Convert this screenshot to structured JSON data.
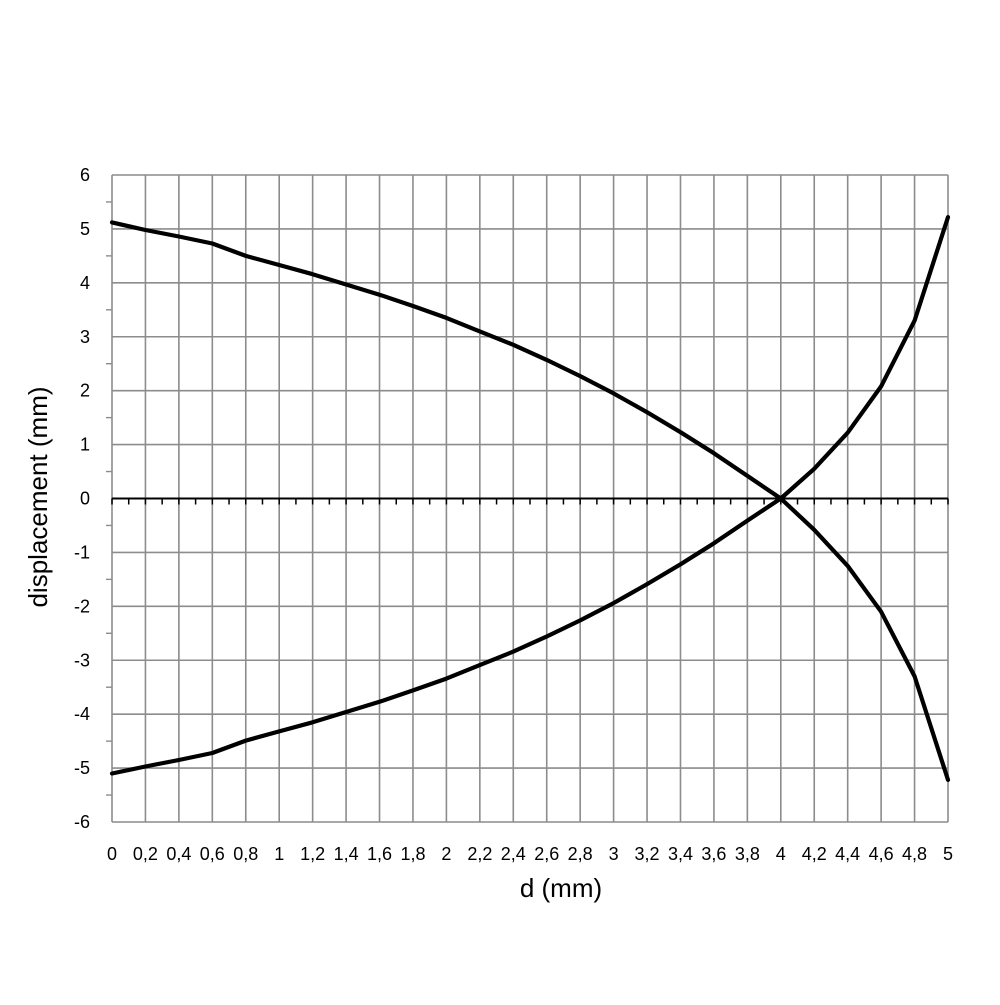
{
  "chart_data": {
    "type": "line",
    "xlabel": "d (mm)",
    "ylabel": "displacement (mm)",
    "xlim": [
      0,
      5
    ],
    "ylim": [
      -6,
      6
    ],
    "grid": true,
    "legend": "none",
    "x_tick_labels": [
      "0",
      "0,2",
      "0,4",
      "0,6",
      "0,8",
      "1",
      "1,2",
      "1,4",
      "1,6",
      "1,8",
      "2",
      "2,2",
      "2,4",
      "2,6",
      "2,8",
      "3",
      "3,2",
      "3,4",
      "3,6",
      "3,8",
      "4",
      "4,2",
      "4,4",
      "4,6",
      "4,8",
      "5"
    ],
    "y_tick_labels": [
      "6",
      "5",
      "4",
      "3",
      "2",
      "1",
      "0",
      "-1",
      "-2",
      "-3",
      "-4",
      "-5",
      "-6"
    ],
    "series": [
      {
        "x": [
          0,
          0.2,
          0.4,
          0.6,
          0.8,
          1.0,
          1.2,
          1.4,
          1.6,
          1.8,
          2.0,
          2.2,
          2.4,
          2.6,
          2.8,
          3.0,
          3.2,
          3.4,
          3.6,
          3.8,
          4.0
        ],
        "y": [
          5.12,
          4.98,
          4.86,
          4.73,
          4.5,
          4.33,
          4.16,
          3.97,
          3.78,
          3.57,
          3.35,
          3.1,
          2.85,
          2.57,
          2.27,
          1.95,
          1.6,
          1.23,
          0.84,
          0.42,
          0.0
        ]
      },
      {
        "x": [
          0,
          0.2,
          0.4,
          0.6,
          0.8,
          1.0,
          1.2,
          1.4,
          1.6,
          1.8,
          2.0,
          2.2,
          2.4,
          2.6,
          2.8,
          3.0,
          3.2,
          3.4,
          3.6,
          3.8,
          4.0
        ],
        "y": [
          -5.1,
          -4.97,
          -4.85,
          -4.72,
          -4.49,
          -4.32,
          -4.15,
          -3.96,
          -3.77,
          -3.56,
          -3.34,
          -3.09,
          -2.84,
          -2.56,
          -2.26,
          -1.94,
          -1.59,
          -1.22,
          -0.83,
          -0.41,
          0.0
        ]
      },
      {
        "x": [
          4.0,
          4.2,
          4.4,
          4.6,
          4.8,
          5.0
        ],
        "y": [
          0.0,
          0.55,
          1.22,
          2.08,
          3.3,
          5.22
        ]
      },
      {
        "x": [
          4.0,
          4.2,
          4.4,
          4.6,
          4.8,
          5.0
        ],
        "y": [
          0.0,
          -0.58,
          -1.25,
          -2.1,
          -3.3,
          -5.22
        ]
      }
    ],
    "line_color": "#000000",
    "grid_color": "#8c8c8c"
  }
}
